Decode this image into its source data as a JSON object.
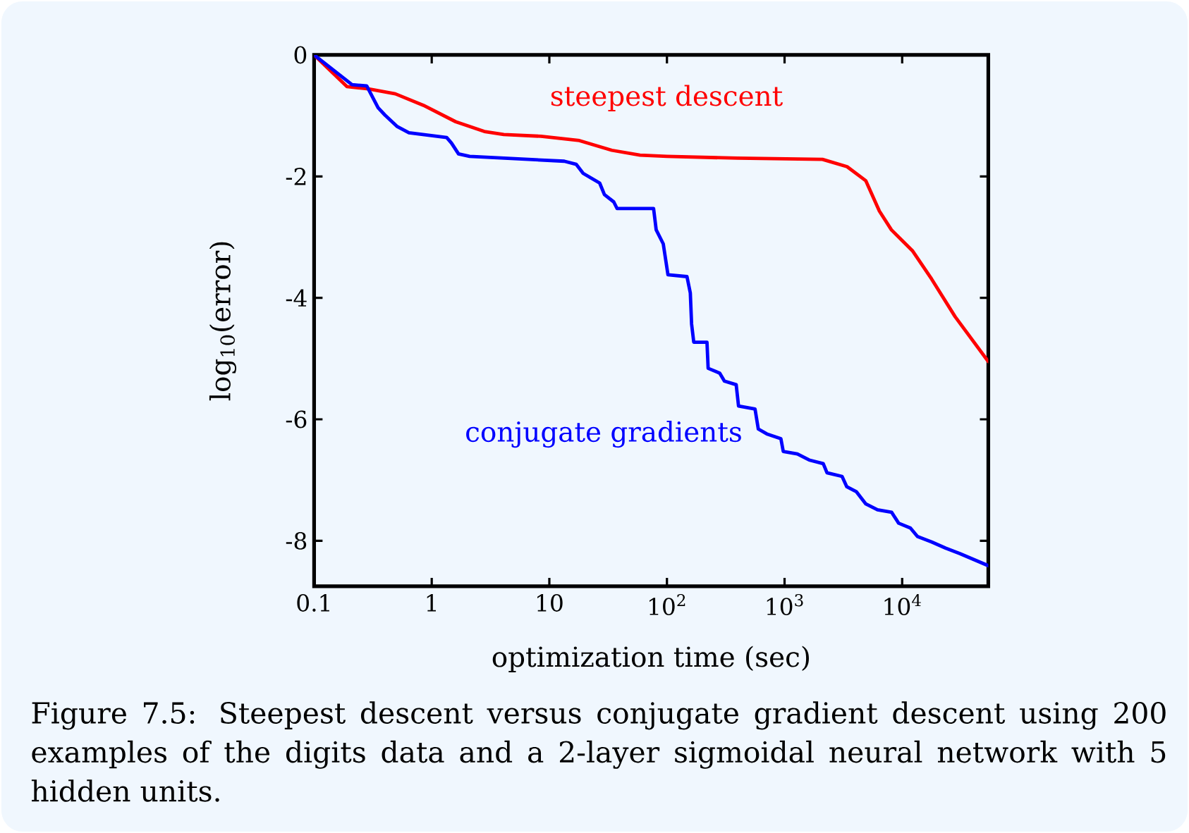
{
  "chart_data": {
    "type": "line",
    "xlabel": "optimization time (sec)",
    "ylabel": "log$_{10}$(error)",
    "log": "x",
    "xlim": [
      0.1,
      54000
    ],
    "ylim": [
      -8.75,
      0
    ],
    "xticks": [
      0.1,
      1,
      10,
      {
        "value": 100,
        "label": "10$^{2}$"
      },
      {
        "value": 1000,
        "label": "10$^{3}$"
      },
      {
        "value": 10000,
        "label": "10$^{4}$"
      }
    ],
    "yticks": [
      -8,
      -6,
      -4,
      -2,
      0
    ],
    "legend": false,
    "marker": "none",
    "line_style": "solid",
    "annotations": [
      "Figure 7.5: Steepest descent versus conjugate gradient descent using 200 examples of the digits data and a 2-layer sigmoidal neural network with 5 hidden units."
    ],
    "series": [
      {
        "name": "steepest descent",
        "color": "#ff0000",
        "x": [
          0.1,
          0.19,
          0.29,
          0.49,
          0.85,
          1.6,
          2.8,
          4.1,
          8.5,
          18,
          34,
          59,
          100,
          400,
          2100,
          3400,
          4900,
          6400,
          8100,
          12300,
          17800,
          28200,
          54000
        ],
        "values": [
          0,
          -0.52,
          -0.56,
          -0.64,
          -0.83,
          -1.1,
          -1.26,
          -1.31,
          -1.34,
          -1.41,
          -1.57,
          -1.65,
          -1.67,
          -1.7,
          -1.72,
          -1.84,
          -2.07,
          -2.57,
          -2.88,
          -3.23,
          -3.69,
          -4.31,
          -5.05
        ]
      },
      {
        "name": "conjugate gradients",
        "color": "#0000ff",
        "x": [
          0.1,
          0.21,
          0.28,
          0.35,
          0.4,
          0.51,
          0.64,
          1.34,
          1.47,
          1.69,
          2.1,
          13.4,
          16.9,
          19.4,
          26.8,
          29.4,
          35.3,
          37.7,
          77,
          81,
          93,
          102,
          148,
          158,
          162,
          169,
          219,
          224,
          281,
          308,
          388,
          406,
          561,
          598,
          706,
          931,
          975,
          1285,
          1618,
          2133,
          2296,
          3083,
          3382,
          4070,
          4890,
          6170,
          8130,
          9330,
          11750,
          13490,
          17800,
          23400,
          30900,
          54000
        ],
        "values": [
          0,
          -0.49,
          -0.51,
          -0.87,
          -0.99,
          -1.18,
          -1.28,
          -1.36,
          -1.45,
          -1.63,
          -1.67,
          -1.75,
          -1.8,
          -1.95,
          -2.11,
          -2.3,
          -2.42,
          -2.53,
          -2.53,
          -2.88,
          -3.11,
          -3.62,
          -3.65,
          -3.92,
          -4.43,
          -4.73,
          -4.73,
          -5.16,
          -5.24,
          -5.37,
          -5.43,
          -5.78,
          -5.83,
          -6.16,
          -6.24,
          -6.32,
          -6.53,
          -6.57,
          -6.67,
          -6.73,
          -6.88,
          -6.94,
          -7.11,
          -7.19,
          -7.39,
          -7.49,
          -7.53,
          -7.71,
          -7.79,
          -7.93,
          -8.02,
          -8.12,
          -8.21,
          -8.41
        ]
      }
    ]
  }
}
